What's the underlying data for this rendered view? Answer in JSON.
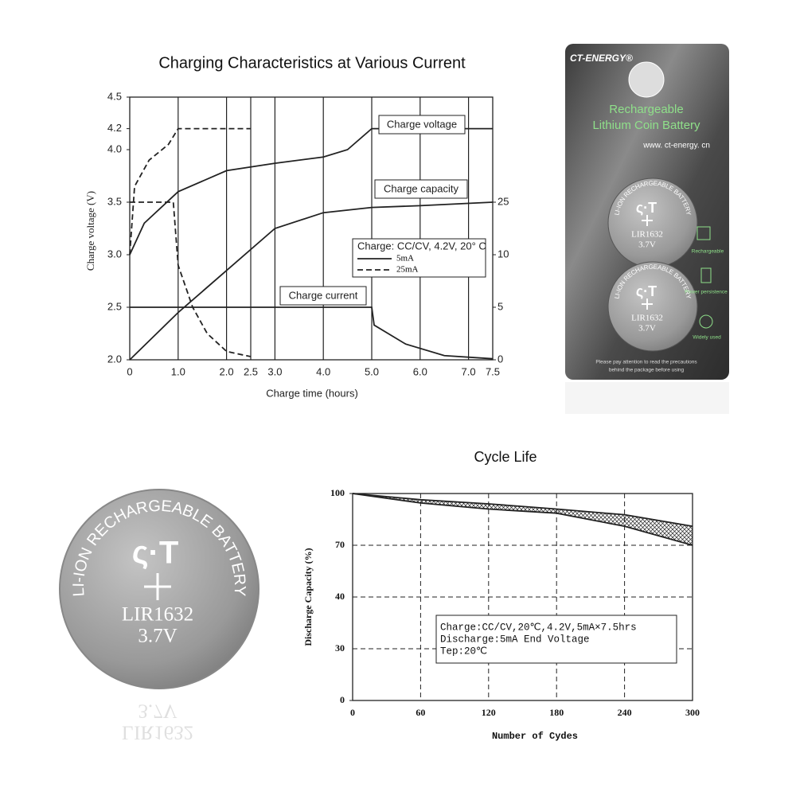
{
  "chart_data": [
    {
      "type": "line",
      "title": "Charging Characteristics at Various Current",
      "x_label": "Charge time (hours)",
      "y_label": "Charge voltage (V)",
      "xlim": [
        0,
        7.5
      ],
      "xticks": [
        0,
        {
          "value": 1,
          "label": "1.0"
        },
        {
          "value": 2,
          "label": "2.0"
        },
        2.5,
        {
          "value": 3,
          "label": "3.0"
        },
        {
          "value": 4,
          "label": "4.0"
        },
        {
          "value": 5,
          "label": "5.0"
        },
        {
          "value": 6,
          "label": "6.0"
        },
        {
          "value": 7,
          "label": "7.0"
        },
        7.5
      ],
      "ylim": [
        2,
        4.5
      ],
      "yticks": [
        {
          "value": 2,
          "label": "2.0"
        },
        2.5,
        {
          "value": 3,
          "label": "3.0"
        },
        3.5,
        {
          "value": 4,
          "label": "4.0"
        },
        4.2,
        4.5
      ],
      "y2lim": [
        0,
        25
      ],
      "y2ticks": [
        0,
        5,
        10,
        25
      ],
      "y2scale": "ticks",
      "grid": "x",
      "series": [
        {
          "style": "solid",
          "color": "#222",
          "x": [
            0,
            0.3,
            1,
            2,
            3,
            4,
            4.5,
            5,
            7.5
          ],
          "values": [
            3.0,
            3.3,
            3.6,
            3.8,
            3.87,
            3.93,
            4.0,
            4.2,
            4.2
          ]
        },
        {
          "style": "dashed",
          "color": "#222",
          "x": [
            0,
            0.1,
            0.4,
            0.8,
            1,
            2.5
          ],
          "values": [
            3.0,
            3.65,
            3.9,
            4.05,
            4.2,
            4.2
          ]
        },
        {
          "style": "solid",
          "color": "#222",
          "axis": "y2",
          "x": [
            0,
            1,
            2,
            3,
            4,
            5,
            6,
            7.5
          ],
          "values": [
            0,
            4.5,
            8.5,
            17.5,
            22,
            23.5,
            24,
            25
          ]
        },
        {
          "style": "dashed",
          "color": "#222",
          "axis": "y2",
          "x": [
            0,
            0.9,
            1.0,
            1.3,
            1.6,
            2.0,
            2.5
          ],
          "values": [
            25,
            25,
            9,
            5,
            2.5,
            0.8,
            0.3
          ]
        },
        {
          "style": "solid",
          "color": "#222",
          "axis": "y2",
          "x": [
            0,
            5,
            5.05,
            5.7,
            6.5,
            7.5
          ],
          "values": [
            5,
            5,
            3.3,
            1.5,
            0.4,
            0.1
          ]
        }
      ],
      "annotations": [
        "Charge voltage",
        "Charge capacity",
        "Charge current"
      ],
      "legend_title": "Charge: CC/CV, 4.2V, 20° C",
      "legend": [
        {
          "label": "5mA",
          "style": "solid"
        },
        {
          "label": "25mA",
          "style": "dashed"
        }
      ]
    },
    {
      "type": "band",
      "title": "Cycle Life",
      "x_label": "Number of Cydes",
      "y_label": "Discharge Capacity (%)",
      "xlim": [
        0,
        300
      ],
      "xticks": [
        0,
        60,
        120,
        180,
        240,
        300
      ],
      "ylim": [
        0,
        100
      ],
      "yticks": [
        0,
        30,
        40,
        70,
        100
      ],
      "yscale": "ticks",
      "grid": "dashed",
      "x": [
        0,
        60,
        120,
        180,
        240,
        300
      ],
      "series": [
        {
          "color": "#222",
          "values": [
            100,
            96.4,
            94,
            91,
            87.7,
            81
          ]
        },
        {
          "color": "#222",
          "values": [
            100,
            94.5,
            91,
            88.6,
            81,
            70
          ]
        }
      ],
      "annotations": [
        "Charge:CC/CV,20℃,4.2V,5mA×7.5hrs",
        "Discharge:5mA End Voltage",
        "Tep:20℃"
      ]
    }
  ],
  "product": {
    "brand": "CT-ENERGY®",
    "headline": [
      "Rechargeable",
      "Lithium Coin Battery"
    ],
    "website": "www. ct-energy. cn",
    "coin_ring": "LI-ION RECHARGEABLE BATTERY",
    "model": "LIR1632",
    "voltage": "3.7V",
    "features": [
      "Rechargeable",
      "Power persistence",
      "Widely used"
    ],
    "notice": [
      "Please pay attention to read the precautions",
      "behind the package before using"
    ]
  }
}
